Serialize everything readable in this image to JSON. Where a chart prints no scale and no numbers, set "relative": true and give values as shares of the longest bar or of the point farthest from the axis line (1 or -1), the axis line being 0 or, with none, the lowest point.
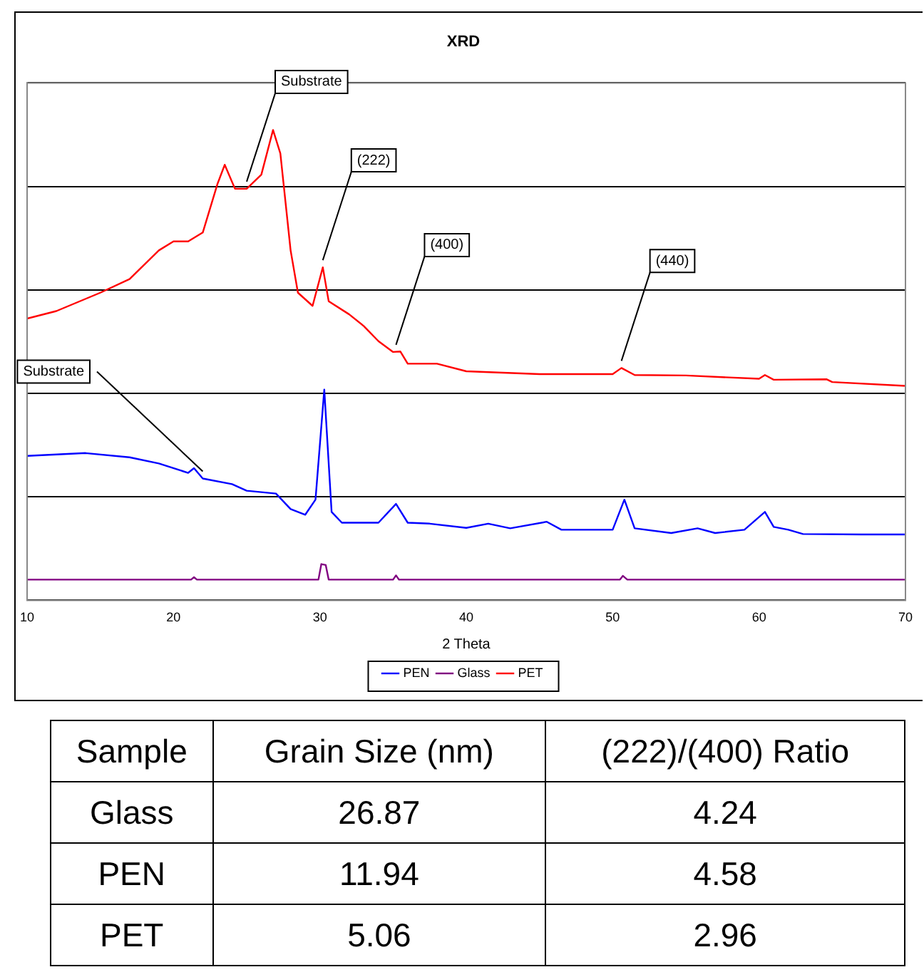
{
  "chart_data": [
    {
      "type": "line",
      "title": "XRD",
      "xlabel": "2 Theta",
      "xlim": [
        10,
        70
      ],
      "xticks": [
        10,
        20,
        30,
        40,
        50,
        60,
        70
      ],
      "relative": true,
      "grid": "y",
      "legend": "bottom",
      "marker": "none",
      "line_style": "solid",
      "series": [
        {
          "name": "PEN",
          "color": "#0000ff",
          "x": [
            10,
            14,
            17,
            19,
            21,
            21.4,
            22,
            24,
            25,
            27,
            28,
            29,
            29.7,
            30.3,
            30.8,
            31.5,
            34,
            35.2,
            36,
            37.5,
            40,
            41.5,
            43,
            45.5,
            46.5,
            50,
            50.8,
            51.5,
            54,
            55.8,
            57,
            59,
            60.4,
            61,
            62,
            63,
            67,
            70
          ],
          "values": [
            0.307,
            0.313,
            0.304,
            0.291,
            0.271,
            0.281,
            0.259,
            0.247,
            0.233,
            0.227,
            0.194,
            0.182,
            0.214,
            0.448,
            0.188,
            0.165,
            0.165,
            0.205,
            0.165,
            0.163,
            0.154,
            0.163,
            0.153,
            0.167,
            0.15,
            0.15,
            0.214,
            0.153,
            0.143,
            0.153,
            0.143,
            0.15,
            0.188,
            0.156,
            0.15,
            0.141,
            0.14,
            0.14
          ]
        },
        {
          "name": "Glass",
          "color": "#800080",
          "x": [
            10,
            21.2,
            21.4,
            21.6,
            29.9,
            30.1,
            30.4,
            30.6,
            35,
            35.2,
            35.4,
            50.5,
            50.7,
            51,
            70
          ],
          "values": [
            0.044,
            0.044,
            0.049,
            0.044,
            0.044,
            0.077,
            0.075,
            0.044,
            0.044,
            0.053,
            0.044,
            0.044,
            0.052,
            0.044,
            0.044
          ]
        },
        {
          "name": "PET",
          "color": "#ff0000",
          "x": [
            10,
            12,
            15,
            17,
            19,
            20,
            21,
            22,
            23,
            23.5,
            24.2,
            25,
            26,
            26.8,
            27.3,
            28,
            28.5,
            29.5,
            30.2,
            30.6,
            32,
            33,
            34,
            35,
            35.5,
            36,
            38,
            40,
            45,
            50,
            50.6,
            51.5,
            55,
            60,
            60.4,
            61,
            64.6,
            65,
            70
          ],
          "values": [
            0.599,
            0.615,
            0.654,
            0.683,
            0.744,
            0.763,
            0.763,
            0.782,
            0.885,
            0.926,
            0.875,
            0.875,
            0.905,
            1,
            0.95,
            0.744,
            0.654,
            0.626,
            0.708,
            0.636,
            0.608,
            0.583,
            0.551,
            0.528,
            0.529,
            0.503,
            0.503,
            0.487,
            0.481,
            0.481,
            0.494,
            0.479,
            0.478,
            0.471,
            0.479,
            0.469,
            0.47,
            0.464,
            0.456
          ]
        }
      ],
      "annotations": [
        {
          "text": "Substrate",
          "x": 25,
          "y": 0.875
        },
        {
          "text": "(222)",
          "x": 30.2,
          "y": 0.708
        },
        {
          "text": "(400)",
          "x": 35.2,
          "y": 0.528
        },
        {
          "text": "(440)",
          "x": 50.6,
          "y": 0.494
        },
        {
          "text": "Substrate",
          "x": 22,
          "y": 0.259
        }
      ]
    },
    {
      "type": "other",
      "annotations": [
        "Sample",
        "Grain Size (nm)",
        "(222)/(400) Ratio",
        "Glass",
        "26.87",
        "4.24",
        "PEN",
        "11.94",
        "4.58",
        "PET",
        "5.06",
        "2.96"
      ]
    }
  ]
}
